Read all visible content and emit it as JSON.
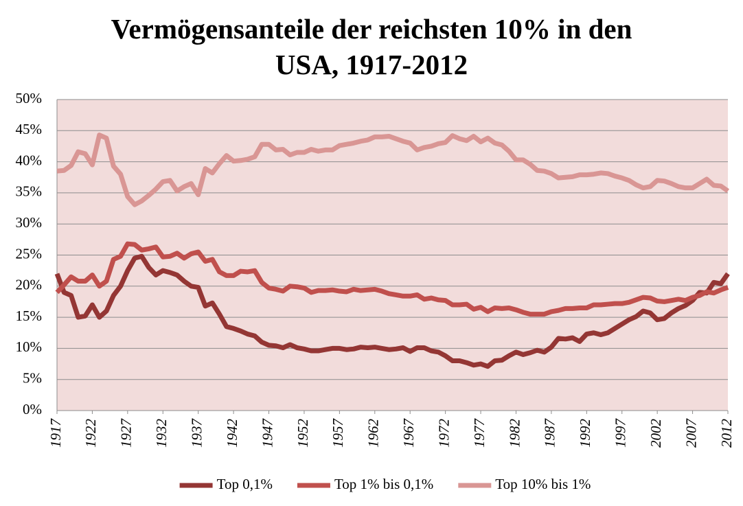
{
  "chart_data": {
    "type": "line",
    "title": "Vermögensanteile der reichsten 10% in den USA, 1917-2012",
    "x": [
      1917,
      1918,
      1919,
      1920,
      1921,
      1922,
      1923,
      1924,
      1925,
      1926,
      1927,
      1928,
      1929,
      1930,
      1931,
      1932,
      1933,
      1934,
      1935,
      1936,
      1937,
      1938,
      1939,
      1940,
      1941,
      1942,
      1943,
      1944,
      1945,
      1946,
      1947,
      1948,
      1949,
      1950,
      1951,
      1952,
      1953,
      1954,
      1955,
      1956,
      1957,
      1958,
      1959,
      1960,
      1961,
      1962,
      1963,
      1964,
      1965,
      1966,
      1967,
      1968,
      1969,
      1970,
      1971,
      1972,
      1973,
      1974,
      1975,
      1976,
      1977,
      1978,
      1979,
      1980,
      1981,
      1982,
      1983,
      1984,
      1985,
      1986,
      1987,
      1988,
      1989,
      1990,
      1991,
      1992,
      1993,
      1994,
      1995,
      1996,
      1997,
      1998,
      1999,
      2000,
      2001,
      2002,
      2003,
      2004,
      2005,
      2006,
      2007,
      2008,
      2009,
      2010,
      2011,
      2012
    ],
    "xlim": [
      1917,
      2012
    ],
    "xticks": [
      1917,
      1922,
      1927,
      1932,
      1937,
      1942,
      1947,
      1952,
      1957,
      1962,
      1967,
      1972,
      1977,
      1982,
      1987,
      1992,
      1997,
      2002,
      2007,
      2012
    ],
    "ylim": [
      0,
      50
    ],
    "yticks": [
      {
        "value": 0,
        "label": "0%"
      },
      {
        "value": 5,
        "label": "5%"
      },
      {
        "value": 10,
        "label": "10%"
      },
      {
        "value": 15,
        "label": "15%"
      },
      {
        "value": 20,
        "label": "20%"
      },
      {
        "value": 25,
        "label": "25%"
      },
      {
        "value": 30,
        "label": "30%"
      },
      {
        "value": 35,
        "label": "35%"
      },
      {
        "value": 40,
        "label": "40%"
      },
      {
        "value": 45,
        "label": "45%"
      },
      {
        "value": 50,
        "label": "50%"
      }
    ],
    "grid": true,
    "legend": "bottom",
    "series": [
      {
        "name": "Top 0,1%",
        "color": "#943634",
        "values": [
          22,
          19,
          18.5,
          15,
          15.2,
          17,
          15,
          16,
          18.5,
          20,
          22.5,
          24.5,
          24.8,
          23,
          21.8,
          22.5,
          22.2,
          21.8,
          20.8,
          20,
          19.8,
          16.8,
          17.3,
          15.5,
          13.5,
          13.2,
          12.8,
          12.3,
          12,
          11,
          10.5,
          10.4,
          10.1,
          10.6,
          10.1,
          9.9,
          9.6,
          9.6,
          9.8,
          10,
          10,
          9.8,
          9.9,
          10.2,
          10.1,
          10.2,
          10,
          9.8,
          9.9,
          10.1,
          9.5,
          10.1,
          10.1,
          9.6,
          9.4,
          8.8,
          8,
          8,
          7.7,
          7.3,
          7.5,
          7.1,
          8,
          8.1,
          8.8,
          9.4,
          9,
          9.3,
          9.7,
          9.4,
          10.2,
          11.6,
          11.5,
          11.7,
          11.1,
          12.3,
          12.5,
          12.2,
          12.5,
          13.2,
          13.9,
          14.6,
          15.1,
          16,
          15.7,
          14.6,
          14.8,
          15.7,
          16.4,
          16.9,
          17.7,
          19,
          18.9,
          20.6,
          20.4,
          22
        ]
      },
      {
        "name": "Top 1% bis 0,1%",
        "color": "#c0504d",
        "values": [
          19,
          20.2,
          21.5,
          20.8,
          20.8,
          21.8,
          20,
          20.8,
          24.3,
          24.8,
          26.8,
          26.7,
          25.8,
          26,
          26.3,
          24.7,
          24.8,
          25.3,
          24.5,
          25.2,
          25.5,
          24,
          24.3,
          22.3,
          21.7,
          21.7,
          22.4,
          22.3,
          22.5,
          20.6,
          19.7,
          19.5,
          19.2,
          20,
          19.9,
          19.7,
          19,
          19.3,
          19.3,
          19.4,
          19.2,
          19.1,
          19.5,
          19.3,
          19.4,
          19.5,
          19.2,
          18.8,
          18.6,
          18.4,
          18.4,
          18.6,
          17.9,
          18.1,
          17.8,
          17.7,
          17,
          17,
          17.1,
          16.3,
          16.6,
          15.9,
          16.5,
          16.4,
          16.5,
          16.2,
          15.8,
          15.5,
          15.5,
          15.5,
          15.9,
          16.1,
          16.4,
          16.4,
          16.5,
          16.5,
          17,
          17,
          17.1,
          17.2,
          17.2,
          17.4,
          17.8,
          18.2,
          18.1,
          17.6,
          17.5,
          17.7,
          17.9,
          17.7,
          18.2,
          18.5,
          19.1,
          18.9,
          19.4,
          19.8
        ]
      },
      {
        "name": "Top 10% bis 1%",
        "color": "#d99694",
        "values": [
          38.5,
          38.6,
          39.4,
          41.6,
          41.3,
          39.5,
          44.3,
          43.8,
          39.3,
          38,
          34.4,
          33.1,
          33.7,
          34.6,
          35.6,
          36.8,
          37,
          35.3,
          36,
          36.5,
          34.7,
          38.9,
          38.2,
          39.7,
          41,
          40.1,
          40.2,
          40.4,
          40.8,
          42.8,
          42.8,
          41.9,
          42,
          41.1,
          41.5,
          41.5,
          42,
          41.7,
          41.9,
          41.9,
          42.6,
          42.8,
          43,
          43.3,
          43.5,
          44,
          44,
          44.1,
          43.7,
          43.3,
          43,
          41.9,
          42.3,
          42.5,
          42.9,
          43.1,
          44.2,
          43.7,
          43.4,
          44.1,
          43.2,
          43.8,
          43,
          42.7,
          41.7,
          40.3,
          40.3,
          39.6,
          38.6,
          38.5,
          38.1,
          37.4,
          37.5,
          37.6,
          37.9,
          37.9,
          38,
          38.2,
          38.1,
          37.7,
          37.4,
          37,
          36.3,
          35.8,
          36,
          37,
          36.9,
          36.5,
          36,
          35.8,
          35.8,
          36.5,
          37.2,
          36.2,
          36.1,
          35.3
        ]
      }
    ]
  }
}
